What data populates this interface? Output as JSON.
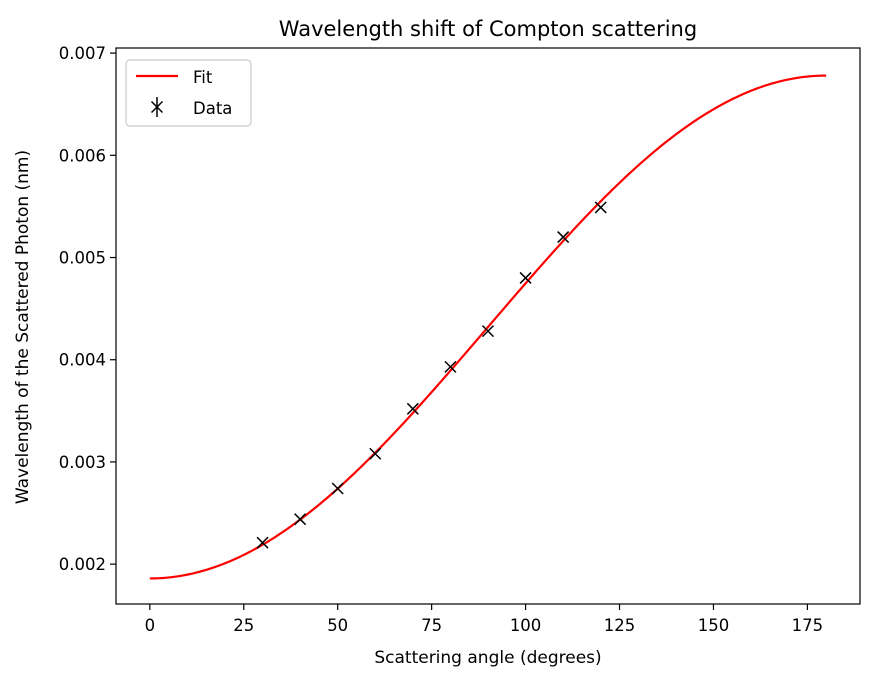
{
  "chart_data": {
    "type": "line",
    "title": "Wavelength shift of Compton scattering",
    "xlabel": "Scattering angle (degrees)",
    "ylabel": "Wavelength of the Scattered Photon (nm)",
    "xlim": [
      -9,
      189
    ],
    "ylim": [
      0.00161,
      0.00705
    ],
    "xticks": [
      0,
      25,
      50,
      75,
      100,
      125,
      150,
      175
    ],
    "xtick_labels": [
      "0",
      "25",
      "50",
      "75",
      "100",
      "125",
      "150",
      "175"
    ],
    "yticks": [
      0.002,
      0.003,
      0.004,
      0.005,
      0.006,
      0.007
    ],
    "ytick_labels": [
      "0.002",
      "0.003",
      "0.004",
      "0.005",
      "0.006",
      "0.007"
    ],
    "grid": false,
    "legend_position": "upper-left",
    "series": [
      {
        "name": "Fit",
        "kind": "line",
        "color": "#ff0000",
        "model": "lambda0 + h_over_mc * (1 - cos(theta))",
        "lambda0": 0.00186,
        "h_over_mc": 0.00246,
        "x_range": [
          0,
          180
        ]
      },
      {
        "name": "Data",
        "kind": "errorbar-x-markers",
        "color": "#000000",
        "x": [
          30,
          40,
          50,
          60,
          70,
          80,
          90,
          100,
          110,
          120
        ],
        "y": [
          0.00221,
          0.00244,
          0.00274,
          0.00308,
          0.00352,
          0.00393,
          0.00428,
          0.0048,
          0.0052,
          0.00549
        ]
      }
    ]
  }
}
